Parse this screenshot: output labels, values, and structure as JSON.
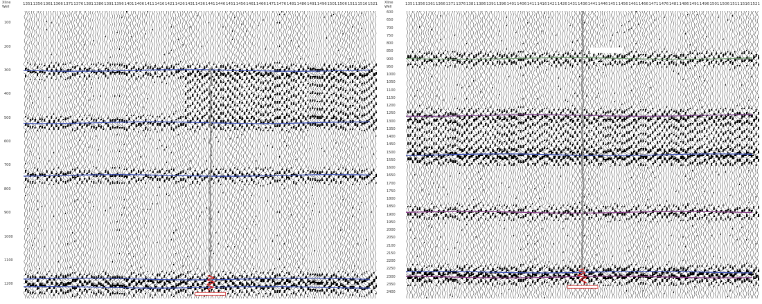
{
  "sections": [
    {
      "id": "left",
      "header_key": [
        "Xline",
        "Well"
      ],
      "xlines": [
        "1351",
        "1356",
        "1361",
        "1366",
        "1371",
        "1376",
        "1381",
        "1386",
        "1391",
        "1396",
        "1401",
        "1406",
        "1411",
        "1416",
        "1421",
        "1426",
        "1431",
        "1436",
        "1441",
        "1446",
        "1451",
        "1456",
        "1461",
        "1466",
        "1471",
        "1476",
        "1481",
        "1486",
        "1491",
        "1496",
        "1501",
        "1506",
        "1511",
        "1516",
        "1521"
      ],
      "times": [
        "100",
        "200",
        "300",
        "400",
        "500",
        "600",
        "700",
        "800",
        "900",
        "1000",
        "1100",
        "1200"
      ],
      "horizons": [
        {
          "t": 300,
          "color": "#3a4fb8"
        },
        {
          "t": 520,
          "color": "#3a4fb8"
        },
        {
          "t": 742,
          "color": "#3a4fb8"
        },
        {
          "t": 1178,
          "color": "#3a4fb8"
        },
        {
          "t": 1213,
          "color": "#3a4fb8"
        }
      ],
      "well_xline": 1441
    },
    {
      "id": "right",
      "header_key": [
        "Xline",
        "Well"
      ],
      "xlines": [
        "1351",
        "1356",
        "1361",
        "1366",
        "1371",
        "1376",
        "1381",
        "1386",
        "1391",
        "1396",
        "1401",
        "1406",
        "1411",
        "1416",
        "1421",
        "1426",
        "1431",
        "1436",
        "1441",
        "1446",
        "1451",
        "1456",
        "1461",
        "1466",
        "1471",
        "1476",
        "1481",
        "1486",
        "1491",
        "1496",
        "1501",
        "1506",
        "1511",
        "1516",
        "1521"
      ],
      "times": [
        "600",
        "650",
        "700",
        "750",
        "800",
        "850",
        "900",
        "950",
        "1000",
        "1050",
        "1100",
        "1150",
        "1200",
        "1250",
        "1300",
        "1350",
        "1400",
        "1450",
        "1500",
        "1550",
        "1600",
        "1650",
        "1700",
        "1750",
        "1800",
        "1850",
        "1900",
        "1950",
        "2000",
        "2050",
        "2100",
        "2150",
        "2200",
        "2250",
        "2300",
        "2350",
        "2400"
      ],
      "horizons": [
        {
          "t": 895,
          "color": "#6e9a6e"
        },
        {
          "t": 1262,
          "color": "#7a3a8a"
        },
        {
          "t": 1515,
          "color": "#3a4fb8"
        },
        {
          "t": 1885,
          "color": "#8a3a8a"
        },
        {
          "t": 2270,
          "color": "#3a4fb8"
        },
        {
          "t": 2302,
          "color": "#8a3a8a"
        }
      ],
      "well_xline": 1436
    }
  ]
}
